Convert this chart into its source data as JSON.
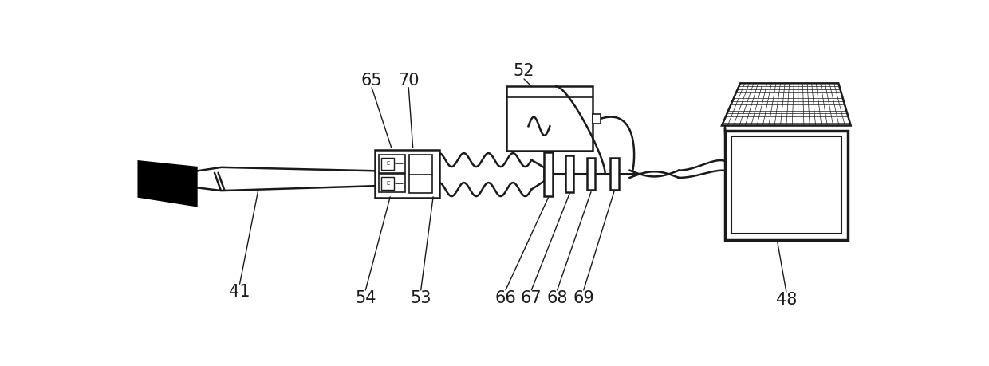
{
  "bg_color": "#ffffff",
  "line_color": "#1a1a1a",
  "label_fontsize": 15,
  "figsize": [
    12.4,
    4.59
  ],
  "dpi": 100
}
